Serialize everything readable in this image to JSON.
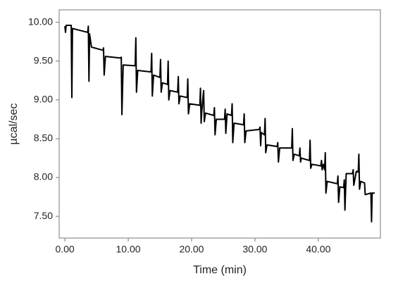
{
  "chart_data": {
    "type": "line",
    "x_label": "Time (min)",
    "y_label": "µcal/sec",
    "x": [
      0,
      0.1,
      0.2,
      1.0,
      1.1,
      1.2,
      3.6,
      3.7,
      3.8,
      3.9,
      4.2,
      6.0,
      6.1,
      6.2,
      6.4,
      8.8,
      8.9,
      9.0,
      9.2,
      11.1,
      11.2,
      11.3,
      11.5,
      13.6,
      13.7,
      13.8,
      14.0,
      15.0,
      15.1,
      15.2,
      15.4,
      16.2,
      16.3,
      16.4,
      16.6,
      17.8,
      17.9,
      18.0,
      18.2,
      19.3,
      19.4,
      19.5,
      19.7,
      21.3,
      21.4,
      21.5,
      21.6,
      21.9,
      22.0,
      22.2,
      23.5,
      23.6,
      23.7,
      23.9,
      25.2,
      25.3,
      25.4,
      25.6,
      26.3,
      26.4,
      26.5,
      26.7,
      28.2,
      28.3,
      28.4,
      28.6,
      30.7,
      30.8,
      30.9,
      31.0,
      31.5,
      31.6,
      31.7,
      31.9,
      33.5,
      33.6,
      33.7,
      33.9,
      35.8,
      35.9,
      36.0,
      36.2,
      37.0,
      37.1,
      37.2,
      37.3,
      38.6,
      38.7,
      38.8,
      39.0,
      40.4,
      40.5,
      40.6,
      40.8,
      41.0,
      41.1,
      41.2,
      41.4,
      43.0,
      43.1,
      43.2,
      43.4,
      44.0,
      44.1,
      44.2,
      44.4,
      45.4,
      45.5,
      45.6,
      46.0,
      46.3,
      46.4,
      46.5,
      46.7,
      47.3,
      47.4,
      48.3,
      48.4,
      48.5,
      48.9
    ],
    "series": [
      {
        "color": "#000000",
        "values": [
          9.95,
          9.87,
          9.96,
          9.96,
          9.03,
          9.92,
          9.87,
          9.95,
          9.24,
          9.85,
          9.68,
          9.64,
          9.67,
          9.32,
          9.56,
          9.54,
          9.55,
          8.81,
          9.45,
          9.44,
          9.8,
          9.1,
          9.38,
          9.36,
          9.6,
          9.05,
          9.32,
          9.29,
          9.52,
          9.1,
          9.22,
          9.2,
          9.5,
          9.0,
          9.12,
          9.1,
          9.3,
          8.95,
          9.05,
          9.03,
          9.27,
          8.82,
          8.95,
          8.93,
          9.15,
          8.7,
          8.85,
          9.12,
          8.72,
          8.83,
          8.8,
          8.9,
          8.55,
          8.75,
          8.75,
          8.88,
          8.57,
          8.82,
          8.8,
          8.95,
          8.45,
          8.7,
          8.68,
          8.82,
          8.45,
          8.6,
          8.62,
          8.65,
          8.41,
          8.58,
          8.55,
          8.76,
          8.32,
          8.42,
          8.4,
          8.45,
          8.2,
          8.38,
          8.38,
          8.63,
          8.22,
          8.3,
          8.28,
          8.38,
          8.2,
          8.25,
          8.22,
          8.48,
          8.12,
          8.17,
          8.15,
          8.22,
          8.1,
          8.17,
          8.1,
          8.32,
          7.8,
          7.95,
          7.92,
          8.02,
          7.68,
          7.88,
          7.87,
          7.97,
          7.58,
          8.05,
          8.05,
          8.1,
          7.9,
          8.08,
          8.07,
          8.3,
          7.85,
          7.95,
          7.93,
          7.78,
          7.8,
          7.43,
          7.8,
          7.8
        ]
      }
    ],
    "xlim": [
      -0.9,
      49.8
    ],
    "xticks": [
      {
        "value": 0,
        "label": "0.00"
      },
      {
        "value": 10,
        "label": "10.00"
      },
      {
        "value": 20,
        "label": "20.00"
      },
      {
        "value": 30,
        "label": "30.00"
      },
      {
        "value": 40,
        "label": "40.00"
      }
    ],
    "ylim": [
      7.22,
      10.16
    ],
    "yticks": [
      {
        "value": 7.5,
        "label": "7.50"
      },
      {
        "value": 8,
        "label": "8.00"
      },
      {
        "value": 8.5,
        "label": "8.50"
      },
      {
        "value": 9,
        "label": "9.00"
      },
      {
        "value": 9.5,
        "label": "9.50"
      },
      {
        "value": 10,
        "label": "10.00"
      }
    ],
    "grid": false
  }
}
